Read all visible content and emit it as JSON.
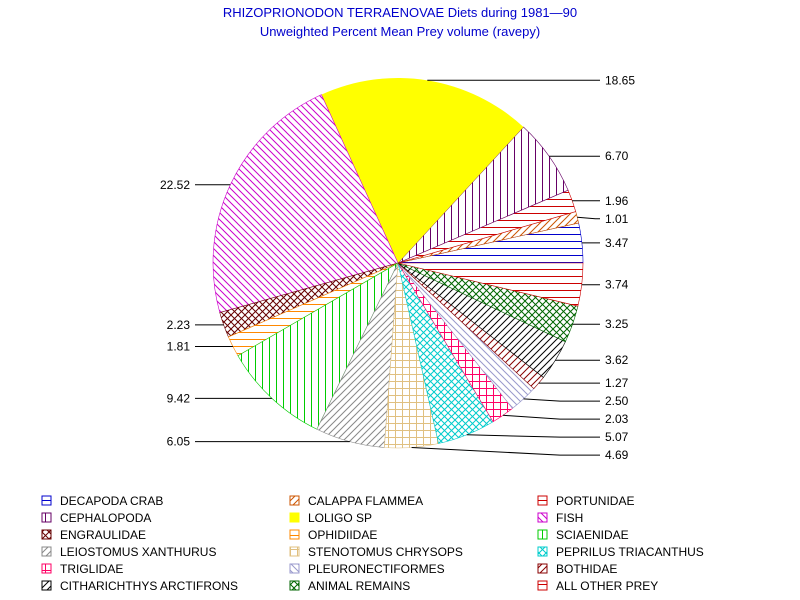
{
  "chart_data": {
    "type": "pie",
    "title": "RHIZOPRIONODON TERRAENOVAE Diets during 1981—90",
    "subtitle": "Unweighted Percent Mean Prey volume (ravepy)",
    "slices": [
      {
        "name": "DECAPODA CRAB",
        "value": 3.47,
        "label": "3.47",
        "color": "#0000cc",
        "pattern": "hline"
      },
      {
        "name": "CALAPPA FLAMMEA",
        "value": 1.01,
        "label": "1.01",
        "color": "#cc5500",
        "pattern": "fdiag"
      },
      {
        "name": "PORTUNIDAE",
        "value": 1.96,
        "label": "1.96",
        "color": "#cc0000",
        "pattern": "hline"
      },
      {
        "name": "CEPHALOPODA",
        "value": 6.7,
        "label": "6.70",
        "color": "#660066",
        "pattern": "vline"
      },
      {
        "name": "LOLIGO SP",
        "value": 18.65,
        "label": "18.65",
        "color": "#ffff00",
        "pattern": "solid"
      },
      {
        "name": "FISH",
        "value": 22.52,
        "label": "22.52",
        "color": "#cc00cc",
        "pattern": "bdiag"
      },
      {
        "name": "ENGRAULIDAE",
        "value": 2.23,
        "label": "2.23",
        "color": "#660000",
        "pattern": "xdiag"
      },
      {
        "name": "OPHIDIIDAE",
        "value": 1.81,
        "label": "1.81",
        "color": "#ff8800",
        "pattern": "hline"
      },
      {
        "name": "SCIAENIDAE",
        "value": 9.42,
        "label": "9.42",
        "color": "#00cc00",
        "pattern": "vline"
      },
      {
        "name": "LEIOSTOMUS XANTHURUS",
        "value": 6.05,
        "label": "6.05",
        "color": "#888888",
        "pattern": "fdiag"
      },
      {
        "name": "STENOTOMUS CHRYSOPS",
        "value": 4.69,
        "label": "4.69",
        "color": "#e0c080",
        "pattern": "grid"
      },
      {
        "name": "PEPRILUS TRIACANTHUS",
        "value": 5.07,
        "label": "5.07",
        "color": "#00cccc",
        "pattern": "xdiag"
      },
      {
        "name": "TRIGLIDAE",
        "value": 2.03,
        "label": "2.03",
        "color": "#ff0066",
        "pattern": "grid"
      },
      {
        "name": "PLEURONECTIFORMES",
        "value": 2.5,
        "label": "2.50",
        "color": "#9999cc",
        "pattern": "bdiag"
      },
      {
        "name": "BOTHIDAE",
        "value": 1.27,
        "label": "1.27",
        "color": "#880000",
        "pattern": "fdiag"
      },
      {
        "name": "CITHARICHTHYS ARCTIFRONS",
        "value": 3.62,
        "label": "3.62",
        "color": "#000000",
        "pattern": "fdiag"
      },
      {
        "name": "ANIMAL REMAINS",
        "value": 3.25,
        "label": "3.25",
        "color": "#006600",
        "pattern": "xdiag"
      },
      {
        "name": "ALL OTHER PREY",
        "value": 3.74,
        "label": "3.74",
        "color": "#cc0000",
        "pattern": "hline"
      }
    ]
  }
}
